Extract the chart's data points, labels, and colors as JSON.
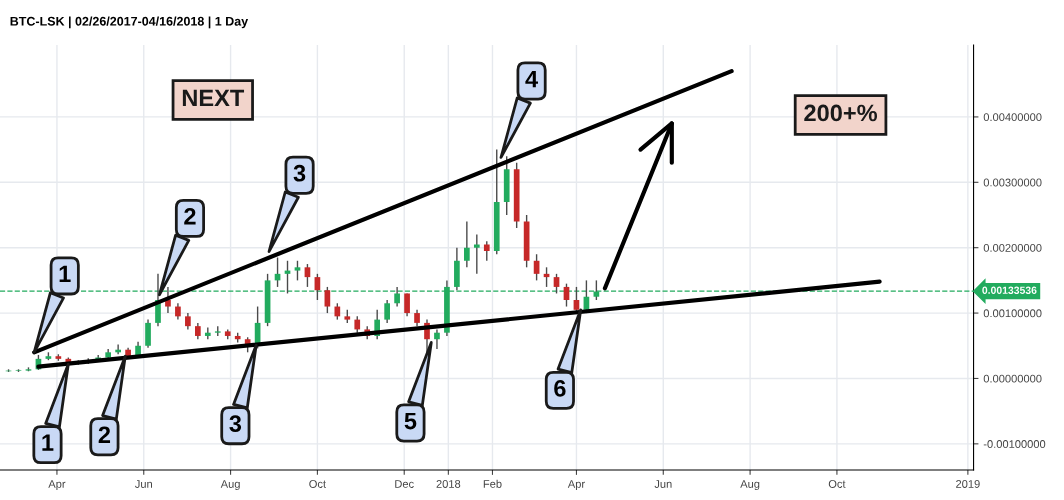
{
  "chart_data": {
    "type": "candlestick",
    "title": "BTC-LSK | 02/26/2017-04/16/2018 | 1 Day",
    "x": [
      "2017-02-26",
      "2017-03-05",
      "2017-03-12",
      "2017-03-19",
      "2017-03-26",
      "2017-04-02",
      "2017-04-09",
      "2017-04-16",
      "2017-04-23",
      "2017-04-30",
      "2017-05-07",
      "2017-05-14",
      "2017-05-21",
      "2017-05-28",
      "2017-06-04",
      "2017-06-11",
      "2017-06-18",
      "2017-06-25",
      "2017-07-02",
      "2017-07-09",
      "2017-07-16",
      "2017-07-23",
      "2017-07-30",
      "2017-08-06",
      "2017-08-13",
      "2017-08-20",
      "2017-08-27",
      "2017-09-03",
      "2017-09-10",
      "2017-09-17",
      "2017-09-24",
      "2017-10-01",
      "2017-10-08",
      "2017-10-15",
      "2017-10-22",
      "2017-10-29",
      "2017-11-05",
      "2017-11-12",
      "2017-11-19",
      "2017-11-26",
      "2017-12-03",
      "2017-12-10",
      "2017-12-17",
      "2017-12-24",
      "2017-12-31",
      "2018-01-07",
      "2018-01-14",
      "2018-01-21",
      "2018-01-28",
      "2018-02-04",
      "2018-02-11",
      "2018-02-18",
      "2018-02-25",
      "2018-03-04",
      "2018-03-11",
      "2018-03-18",
      "2018-03-25",
      "2018-04-01",
      "2018-04-08",
      "2018-04-15"
    ],
    "ohlc": [
      [
        0.00011,
        0.00014,
        0.0001,
        0.00012
      ],
      [
        0.00012,
        0.00014,
        0.0001,
        0.00012
      ],
      [
        0.00012,
        0.00017,
        0.00011,
        0.00014
      ],
      [
        0.00014,
        0.00036,
        0.00013,
        0.0003
      ],
      [
        0.0003,
        0.0004,
        0.00028,
        0.00034
      ],
      [
        0.00034,
        0.00037,
        0.00027,
        0.0003
      ],
      [
        0.0003,
        0.00032,
        0.00022,
        0.00025
      ],
      [
        0.00025,
        0.00028,
        0.00021,
        0.00024
      ],
      [
        0.00024,
        0.00031,
        0.00022,
        0.00028
      ],
      [
        0.00028,
        0.00036,
        0.00026,
        0.00032
      ],
      [
        0.00032,
        0.00045,
        0.0003,
        0.0004
      ],
      [
        0.0004,
        0.00052,
        0.00037,
        0.00044
      ],
      [
        0.00044,
        0.00047,
        0.0003,
        0.00034
      ],
      [
        0.00034,
        0.00056,
        0.00032,
        0.0005
      ],
      [
        0.0005,
        0.0009,
        0.00047,
        0.00085
      ],
      [
        0.00085,
        0.0016,
        0.0008,
        0.0012
      ],
      [
        0.0012,
        0.0014,
        0.001,
        0.0011
      ],
      [
        0.0011,
        0.00115,
        0.0009,
        0.00095
      ],
      [
        0.00095,
        0.001,
        0.00075,
        0.0008
      ],
      [
        0.0008,
        0.00085,
        0.0006,
        0.00065
      ],
      [
        0.00065,
        0.00078,
        0.0006,
        0.0007
      ],
      [
        0.0007,
        0.0008,
        0.00065,
        0.00072
      ],
      [
        0.00072,
        0.00075,
        0.0006,
        0.00065
      ],
      [
        0.00065,
        0.0007,
        0.00055,
        0.0006
      ],
      [
        0.0006,
        0.00063,
        0.0004,
        0.0005
      ],
      [
        0.0005,
        0.0011,
        0.00046,
        0.00085
      ],
      [
        0.00085,
        0.0016,
        0.0008,
        0.0015
      ],
      [
        0.0015,
        0.00185,
        0.0014,
        0.0016
      ],
      [
        0.0016,
        0.0018,
        0.0013,
        0.00165
      ],
      [
        0.00165,
        0.0018,
        0.0015,
        0.0017
      ],
      [
        0.0017,
        0.00175,
        0.0014,
        0.00155
      ],
      [
        0.00155,
        0.0016,
        0.0012,
        0.00135
      ],
      [
        0.00135,
        0.0014,
        0.001,
        0.0011
      ],
      [
        0.0011,
        0.00115,
        0.0009,
        0.00095
      ],
      [
        0.00095,
        0.00105,
        0.00085,
        0.0009
      ],
      [
        0.0009,
        0.00095,
        0.0007,
        0.00075
      ],
      [
        0.00075,
        0.0008,
        0.0006,
        0.00065
      ],
      [
        0.00065,
        0.00105,
        0.0006,
        0.0009
      ],
      [
        0.0009,
        0.0012,
        0.00085,
        0.00115
      ],
      [
        0.00115,
        0.0014,
        0.0011,
        0.0013
      ],
      [
        0.0013,
        0.0013,
        0.00095,
        0.001
      ],
      [
        0.001,
        0.00105,
        0.0008,
        0.00085
      ],
      [
        0.00085,
        0.0009,
        0.0004,
        0.0006
      ],
      [
        0.0006,
        0.00075,
        0.00045,
        0.0007
      ],
      [
        0.0007,
        0.0015,
        0.00065,
        0.0014
      ],
      [
        0.0014,
        0.002,
        0.00135,
        0.0018
      ],
      [
        0.0018,
        0.0024,
        0.0017,
        0.002
      ],
      [
        0.002,
        0.0022,
        0.0016,
        0.00205
      ],
      [
        0.00205,
        0.0021,
        0.0018,
        0.00195
      ],
      [
        0.00195,
        0.0035,
        0.0019,
        0.0027
      ],
      [
        0.0027,
        0.0034,
        0.0025,
        0.0032
      ],
      [
        0.0032,
        0.0033,
        0.0023,
        0.0024
      ],
      [
        0.0024,
        0.0025,
        0.0017,
        0.0018
      ],
      [
        0.0018,
        0.0019,
        0.0015,
        0.0016
      ],
      [
        0.0016,
        0.0017,
        0.0014,
        0.00155
      ],
      [
        0.00155,
        0.0016,
        0.0013,
        0.0014
      ],
      [
        0.0014,
        0.00145,
        0.0011,
        0.0012
      ],
      [
        0.0012,
        0.0014,
        0.001,
        0.00105
      ],
      [
        0.00105,
        0.0015,
        0.001,
        0.00125
      ],
      [
        0.00125,
        0.0015,
        0.0012,
        0.00133
      ]
    ],
    "series": [
      {
        "type": "line",
        "color": "#000000",
        "x": [
          "2017-03-16",
          "2018-07-19"
        ],
        "values": [
          0.0004,
          0.0047
        ]
      },
      {
        "type": "line",
        "color": "#000000",
        "x": [
          "2017-03-19",
          "2018-10-31"
        ],
        "values": [
          0.00018,
          0.00148
        ]
      },
      {
        "type": "line",
        "color": "#000000",
        "x": [
          "2018-04-21",
          "2018-06-07"
        ],
        "values": [
          0.00138,
          0.0039
        ]
      },
      {
        "type": "line",
        "color": "#000000",
        "x": [
          "2018-05-16",
          "2018-06-07",
          "2018-06-07"
        ],
        "values": [
          0.0035,
          0.0039,
          0.0033
        ]
      }
    ],
    "ref_lines": [
      {
        "axis": "y",
        "value": 0.00133536,
        "label": "0.00133536",
        "color": "#22ab5e",
        "line_style": "dashed"
      }
    ],
    "annotations": [
      "NEXT",
      "200+%",
      {
        "text": "1",
        "x": "2017-03-16",
        "y": 0.0004
      },
      {
        "text": "1",
        "x": "2017-04-09",
        "y": 0.00022
      },
      {
        "text": "2",
        "x": "2017-06-12",
        "y": 0.00128
      },
      {
        "text": "2",
        "x": "2017-05-19",
        "y": 0.00034
      },
      {
        "text": "3",
        "x": "2017-08-28",
        "y": 0.00194
      },
      {
        "text": "3",
        "x": "2017-08-19",
        "y": 0.00051
      },
      {
        "text": "4",
        "x": "2018-02-07",
        "y": 0.00338
      },
      {
        "text": "5",
        "x": "2017-12-20",
        "y": 0.00055
      },
      {
        "text": "6",
        "x": "2018-04-04",
        "y": 0.00105
      }
    ],
    "xlim": [
      "2017-02-20",
      "2019-01-05"
    ],
    "xticks": [
      {
        "value": "2017-04-01",
        "label": "Apr"
      },
      {
        "value": "2017-06-01",
        "label": "Jun"
      },
      {
        "value": "2017-08-01",
        "label": "Aug"
      },
      {
        "value": "2017-10-01",
        "label": "Oct"
      },
      {
        "value": "2017-12-01",
        "label": "Dec"
      },
      {
        "value": "2018-01-01",
        "label": "2018"
      },
      {
        "value": "2018-02-01",
        "label": "Feb"
      },
      {
        "value": "2018-04-01",
        "label": "Apr"
      },
      {
        "value": "2018-06-01",
        "label": "Jun"
      },
      {
        "value": "2018-08-01",
        "label": "Aug"
      },
      {
        "value": "2018-10-01",
        "label": "Oct"
      },
      {
        "value": "2019-01-01",
        "label": "2019"
      }
    ],
    "ylim": [
      -0.0014,
      0.0051
    ],
    "yticks": [
      {
        "value": -0.001,
        "label": "-0.00100000"
      },
      {
        "value": 0,
        "label": "0.00000000"
      },
      {
        "value": 0.001,
        "label": "0.00100000"
      },
      {
        "value": 0.002,
        "label": "0.00200000"
      },
      {
        "value": 0.003,
        "label": "0.00300000"
      },
      {
        "value": 0.004,
        "label": "0.00400000"
      }
    ],
    "grid": true
  }
}
